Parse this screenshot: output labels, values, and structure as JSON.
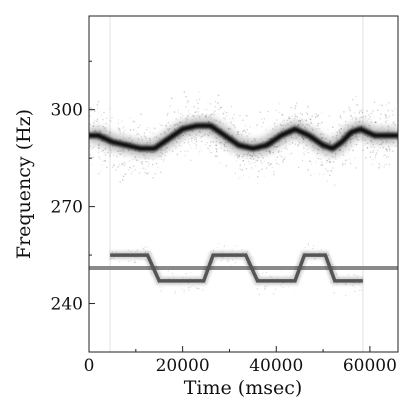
{
  "chart_data": {
    "type": "line",
    "title": "",
    "xlabel": "Time (msec)",
    "ylabel": "Frequency (Hz)",
    "xlim": [
      0,
      66000
    ],
    "ylim": [
      225,
      329
    ],
    "xticks": [
      0,
      20000,
      40000,
      60000
    ],
    "xtick_labels": [
      "0",
      "20000",
      "40000",
      "60000"
    ],
    "yticks": [
      240,
      270,
      300
    ],
    "ytick_labels": [
      "240",
      "270",
      "300"
    ],
    "grid": false,
    "legend": "none",
    "series": [
      {
        "style": "noisy-dark-band",
        "color": "#111111",
        "x": [
          0,
          2000,
          5000,
          8000,
          11000,
          14000,
          17000,
          20000,
          23000,
          26000,
          29000,
          32000,
          35000,
          38000,
          41000,
          44000,
          47000,
          50000,
          52000,
          54000,
          56000,
          58000,
          61000,
          64000,
          66000
        ],
        "y": [
          292,
          292,
          290,
          289,
          288,
          288,
          291,
          294,
          295,
          295,
          292,
          289,
          288,
          289,
          292,
          294,
          292,
          289,
          288,
          290,
          293,
          294,
          292,
          292,
          292
        ]
      },
      {
        "style": "step-band",
        "color": "#555555",
        "x": [
          4500,
          12500,
          15000,
          24500,
          26500,
          33500,
          36000,
          44000,
          46000,
          50500,
          52500,
          58500
        ],
        "y": [
          255,
          255,
          247,
          247,
          255,
          255,
          247,
          247,
          255,
          255,
          247,
          247
        ]
      },
      {
        "style": "flat-band",
        "color": "#8a8a8a",
        "x": [
          0,
          66000
        ],
        "y": [
          251,
          251
        ]
      }
    ],
    "artifacts_x": [
      4500,
      58500
    ]
  }
}
